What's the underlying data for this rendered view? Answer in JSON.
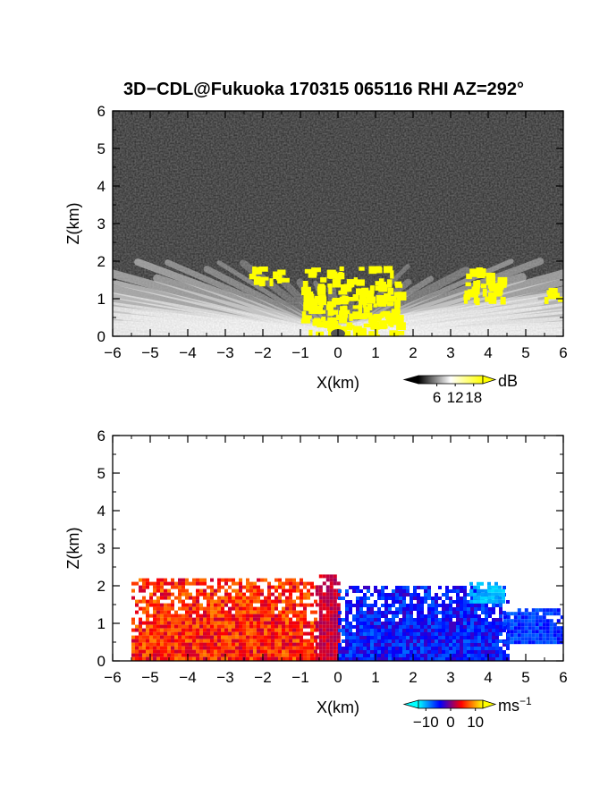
{
  "title": "3D−CDL@Fukuoka 170315 065116 RHI AZ=292°",
  "chart_data": [
    {
      "type": "heatmap",
      "name": "backscatter-intensity",
      "xlabel": "X(km)",
      "ylabel": "Z(km)",
      "xlim": [
        -6,
        6
      ],
      "ylim": [
        0,
        6
      ],
      "x_ticks": [
        "−6",
        "−5",
        "−4",
        "−3",
        "−2",
        "−1",
        "0",
        "1",
        "2",
        "3",
        "4",
        "5",
        "6"
      ],
      "y_ticks": [
        "0",
        "1",
        "2",
        "3",
        "4",
        "5",
        "6"
      ],
      "colorbar": {
        "unit": "dB",
        "ticks": [
          "6",
          "12",
          "18"
        ],
        "tick_values": [
          6,
          12,
          18
        ],
        "range": [
          0,
          21
        ],
        "colors": [
          "#000000",
          "#ffffff",
          "#ffff00"
        ]
      },
      "background_color": "#222222",
      "saturated_color": "#ffff00",
      "saturated_regions_km": [
        {
          "x": [
            -1.0,
            1.6
          ],
          "z": [
            0.0,
            1.9
          ]
        },
        {
          "x": [
            -2.4,
            -1.5
          ],
          "z": [
            1.5,
            1.9
          ]
        },
        {
          "x": [
            3.3,
            4.4
          ],
          "z": [
            1.0,
            1.9
          ]
        },
        {
          "x": [
            5.3,
            5.9
          ],
          "z": [
            1.0,
            1.3
          ]
        }
      ],
      "grid": false
    },
    {
      "type": "heatmap",
      "name": "radial-velocity",
      "xlabel": "X(km)",
      "ylabel": "Z(km)",
      "xlim": [
        -6,
        6
      ],
      "ylim": [
        0,
        6
      ],
      "x_ticks": [
        "−6",
        "−5",
        "−4",
        "−3",
        "−2",
        "−1",
        "0",
        "1",
        "2",
        "3",
        "4",
        "5",
        "6"
      ],
      "y_ticks": [
        "0",
        "1",
        "2",
        "3",
        "4",
        "5",
        "6"
      ],
      "colorbar": {
        "unit": "ms",
        "unit_exponent": "−1",
        "ticks": [
          "−10",
          "0",
          "10"
        ],
        "tick_values": [
          -10,
          0,
          10
        ],
        "range": [
          -13,
          13
        ],
        "colors": [
          "#00ffff",
          "#0000ff",
          "#ff0000",
          "#ffff00"
        ]
      },
      "velocity_regions": [
        {
          "x": [
            -5.5,
            -0.6
          ],
          "z": [
            0.0,
            2.2
          ],
          "velocity_ms": [
            2,
            9
          ]
        },
        {
          "x": [
            -0.6,
            0.0
          ],
          "z": [
            0.0,
            2.3
          ],
          "velocity_ms": [
            1,
            4
          ]
        },
        {
          "x": [
            0.0,
            4.5
          ],
          "z": [
            0.0,
            2.0
          ],
          "velocity_ms": [
            -8,
            -2
          ]
        },
        {
          "x": [
            3.5,
            4.4
          ],
          "z": [
            1.6,
            2.1
          ],
          "velocity_ms": [
            -12,
            -9
          ]
        },
        {
          "x": [
            4.4,
            6.0
          ],
          "z": [
            0.5,
            1.4
          ],
          "velocity_ms": [
            -8,
            -4
          ]
        }
      ],
      "grid": false
    }
  ]
}
